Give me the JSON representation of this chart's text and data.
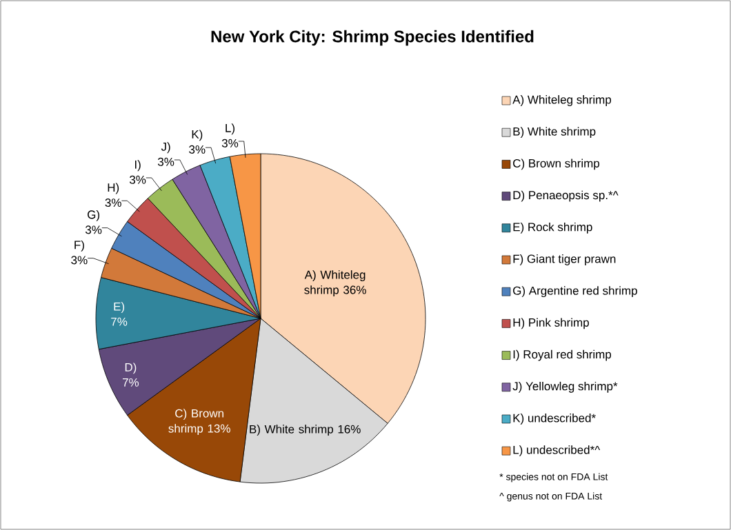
{
  "chart_data": {
    "type": "pie",
    "title": "New York City: Shrimp Species Identified",
    "categories": [
      "A) Whiteleg shrimp",
      "B) White shrimp",
      "C) Brown shrimp",
      "D) Penaeopsis sp.*^",
      "E) Rock shrimp",
      "F) Giant tiger prawn",
      "G) Argentine red shrimp",
      "H) Pink shrimp",
      "I) Royal red shrimp",
      "J) Yellowleg shrimp*",
      "K) undescribed*",
      "L) undescribed*^"
    ],
    "values": [
      36,
      16,
      13,
      7,
      7,
      3,
      3,
      3,
      3,
      3,
      3,
      3
    ],
    "colors": [
      "#fcd5b5",
      "#d9d9d9",
      "#984807",
      "#604a7b",
      "#31859c",
      "#d2793a",
      "#4f81bd",
      "#c0504d",
      "#9bbb59",
      "#8064a2",
      "#4bacc6",
      "#f79646"
    ],
    "value_labels": [
      "A) Whiteleg shrimp 36%",
      "B) White shrimp 16%",
      "C) Brown shrimp 13%",
      "D) 7%",
      "E) 7%",
      "F) 3%",
      "G) 3%",
      "H) 3%",
      "I) 3%",
      "J) 3%",
      "K) 3%",
      "L) 3%"
    ],
    "legend": "right",
    "annotations": [
      "*  species not on FDA List",
      "^  genus not on FDA  List"
    ]
  }
}
